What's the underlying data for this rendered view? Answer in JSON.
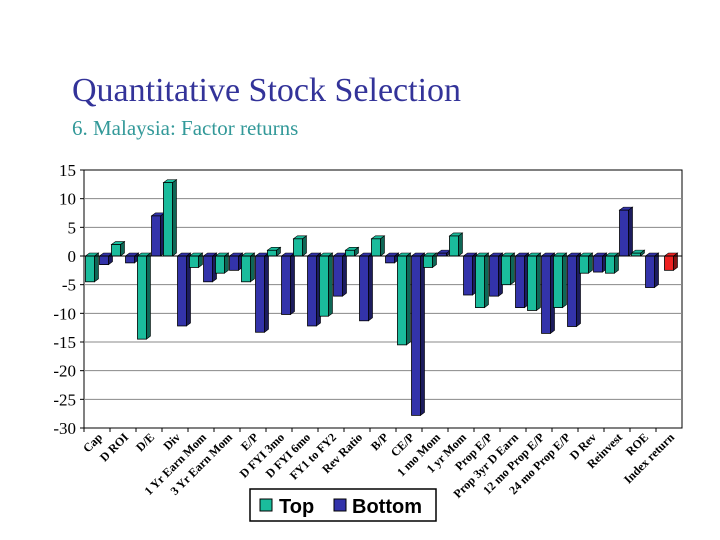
{
  "slide": {
    "title": "Quantitative Stock Selection",
    "subtitle": "6. Malaysia: Factor returns"
  },
  "colors": {
    "top": "#1abc9c",
    "bottom": "#3333aa",
    "index": "#ee2222",
    "title": "#333399",
    "subtitle": "#339999"
  },
  "chart_data": {
    "type": "bar",
    "title": "",
    "xlabel": "",
    "ylabel": "",
    "ylim": [
      -30,
      15
    ],
    "yticks": [
      15,
      10,
      5,
      0,
      -5,
      -10,
      -15,
      -20,
      -25,
      -30
    ],
    "grid": true,
    "legend": "bottom-center",
    "categories": [
      "Cap",
      "D ROI",
      "D/E",
      "Div",
      "1 Yr Earn Mom",
      "3 Yr Earn Mom",
      "E/P",
      "D FYI 3mo",
      "D FYI 6mo",
      "FY1 to FY2",
      "Rev Ratio",
      "B/P",
      "CE/P",
      "1 mo Mom",
      "1 yr Mom",
      "Prop E/P",
      "Prop 3yr D Earn",
      "12 mo Prop E/P",
      "24 mo Prop E/P",
      "D Rev",
      "Reinvest",
      "ROE",
      "Index return"
    ],
    "series": [
      {
        "name": "Top",
        "values": [
          -4.5,
          2,
          -14.5,
          12.8,
          -2,
          -3,
          -4.5,
          1,
          3,
          -10.5,
          1,
          3,
          -15.5,
          -2,
          3.5,
          -9,
          -5,
          -9.5,
          -9,
          -3,
          -3,
          0.5,
          null
        ]
      },
      {
        "name": "Bottom",
        "values": [
          -1.5,
          -1.2,
          7,
          -12.2,
          -4.5,
          -2.5,
          -13.3,
          -10.2,
          -12.2,
          -7,
          -11.3,
          -1.2,
          -27.8,
          0.5,
          -6.8,
          -7,
          -9,
          -13.5,
          -12.3,
          -2.8,
          8,
          -5.5,
          null
        ]
      },
      {
        "name": "Index",
        "values": [
          null,
          null,
          null,
          null,
          null,
          null,
          null,
          null,
          null,
          null,
          null,
          null,
          null,
          null,
          null,
          null,
          null,
          null,
          null,
          null,
          null,
          null,
          -2.5
        ]
      }
    ]
  }
}
